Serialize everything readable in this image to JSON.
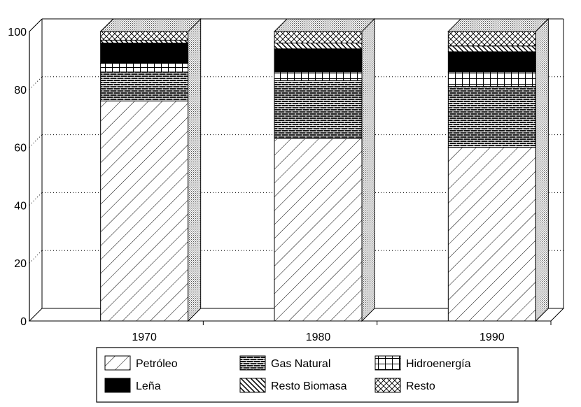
{
  "chart_data": {
    "type": "bar",
    "stacked": true,
    "three_d": true,
    "categories": [
      "1970",
      "1980",
      "1990"
    ],
    "ylim": [
      0,
      100
    ],
    "yticks": [
      "0",
      "20",
      "40",
      "60",
      "80",
      "100"
    ],
    "grid": "horizontal dotted",
    "legend_position": "bottom",
    "series": [
      {
        "name": "Petróleo",
        "values": [
          76,
          63,
          60
        ],
        "pattern": "hatch-wide"
      },
      {
        "name": "Gas Natural",
        "values": [
          10,
          20,
          21
        ],
        "pattern": "brick"
      },
      {
        "name": "Hidroenergía",
        "values": [
          3,
          3,
          5
        ],
        "pattern": "grid"
      },
      {
        "name": "Leña",
        "values": [
          7,
          8,
          7
        ],
        "pattern": "solid"
      },
      {
        "name": "Resto Biomasa",
        "values": [
          1,
          2,
          2
        ],
        "pattern": "hatch-dense"
      },
      {
        "name": "Resto",
        "values": [
          3,
          4,
          5
        ],
        "pattern": "crosshatch"
      }
    ],
    "colors": {
      "ink": "#000000",
      "background": "#ffffff",
      "side_shade": "#bdbdbd"
    }
  }
}
